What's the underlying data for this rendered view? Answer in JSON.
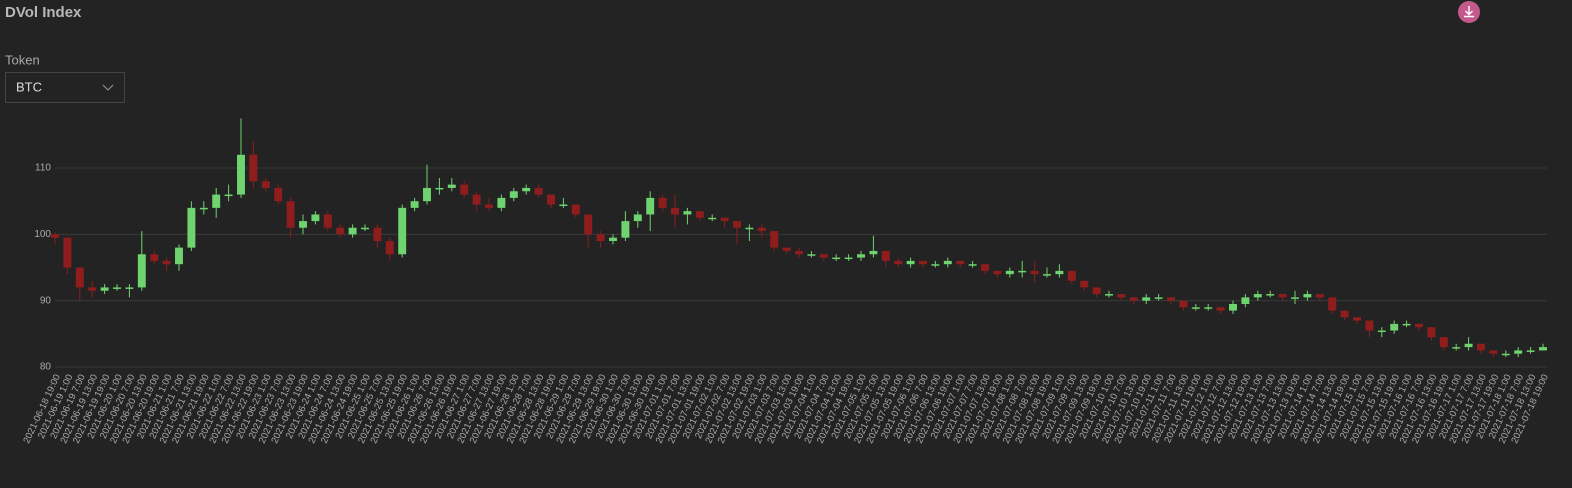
{
  "chart_data": {
    "type": "candlestick",
    "title": "DVol Index",
    "controls": {
      "label": "Token",
      "value": "BTC"
    },
    "categories": [
      "2021-06-18 19:00",
      "2021-06-19 1:00",
      "2021-06-19 7:00",
      "2021-06-19 13:00",
      "2021-06-19 19:00",
      "2021-06-20 1:00",
      "2021-06-20 7:00",
      "2021-06-20 13:00",
      "2021-06-20 19:00",
      "2021-06-21 1:00",
      "2021-06-21 7:00",
      "2021-06-21 13:00",
      "2021-06-21 19:00",
      "2021-06-22 1:00",
      "2021-06-22 7:00",
      "2021-06-22 13:00",
      "2021-06-22 19:00",
      "2021-06-23 1:00",
      "2021-06-23 7:00",
      "2021-06-23 13:00",
      "2021-06-23 19:00",
      "2021-06-24 1:00",
      "2021-06-24 7:00",
      "2021-06-24 13:00",
      "2021-06-24 19:00",
      "2021-06-25 1:00",
      "2021-06-25 7:00",
      "2021-06-25 13:00",
      "2021-06-25 19:00",
      "2021-06-26 1:00",
      "2021-06-26 7:00",
      "2021-06-26 13:00",
      "2021-06-26 19:00",
      "2021-06-27 1:00",
      "2021-06-27 7:00",
      "2021-06-27 13:00",
      "2021-06-27 19:00",
      "2021-06-28 1:00",
      "2021-06-28 7:00",
      "2021-06-28 13:00",
      "2021-06-28 19:00",
      "2021-06-29 1:00",
      "2021-06-29 7:00",
      "2021-06-29 13:00",
      "2021-06-29 19:00",
      "2021-06-30 1:00",
      "2021-06-30 7:00",
      "2021-06-30 13:00",
      "2021-06-30 19:00",
      "2021-07-01 1:00",
      "2021-07-01 7:00",
      "2021-07-01 13:00",
      "2021-07-01 19:00",
      "2021-07-02 1:00",
      "2021-07-02 7:00",
      "2021-07-02 13:00",
      "2021-07-02 19:00",
      "2021-07-03 1:00",
      "2021-07-03 7:00",
      "2021-07-03 13:00",
      "2021-07-03 19:00",
      "2021-07-04 1:00",
      "2021-07-04 7:00",
      "2021-07-04 13:00",
      "2021-07-04 19:00",
      "2021-07-05 1:00",
      "2021-07-05 7:00",
      "2021-07-05 13:00",
      "2021-07-05 19:00",
      "2021-07-06 1:00",
      "2021-07-06 7:00",
      "2021-07-06 13:00",
      "2021-07-06 19:00",
      "2021-07-07 1:00",
      "2021-07-07 7:00",
      "2021-07-07 13:00",
      "2021-07-07 19:00",
      "2021-07-08 1:00",
      "2021-07-08 7:00",
      "2021-07-08 13:00",
      "2021-07-08 19:00",
      "2021-07-09 1:00",
      "2021-07-09 7:00",
      "2021-07-09 13:00",
      "2021-07-09 19:00",
      "2021-07-10 1:00",
      "2021-07-10 7:00",
      "2021-07-10 13:00",
      "2021-07-10 19:00",
      "2021-07-11 1:00",
      "2021-07-11 7:00",
      "2021-07-11 13:00",
      "2021-07-11 19:00",
      "2021-07-12 1:00",
      "2021-07-12 7:00",
      "2021-07-12 13:00",
      "2021-07-12 19:00",
      "2021-07-13 1:00",
      "2021-07-13 7:00",
      "2021-07-13 13:00",
      "2021-07-13 19:00",
      "2021-07-14 1:00",
      "2021-07-14 7:00",
      "2021-07-14 13:00",
      "2021-07-14 19:00",
      "2021-07-15 1:00",
      "2021-07-15 7:00",
      "2021-07-15 13:00",
      "2021-07-15 19:00",
      "2021-07-16 1:00",
      "2021-07-16 7:00",
      "2021-07-16 13:00",
      "2021-07-16 19:00",
      "2021-07-17 1:00",
      "2021-07-17 7:00",
      "2021-07-17 13:00",
      "2021-07-17 19:00",
      "2021-07-18 1:00",
      "2021-07-18 7:00",
      "2021-07-18 13:00",
      "2021-07-18 19:00"
    ],
    "open": [
      100,
      99.5,
      95,
      92,
      91.5,
      92,
      92,
      92,
      97,
      96,
      95.5,
      98,
      104,
      104,
      106,
      106,
      112,
      108,
      107,
      105,
      101,
      102,
      103,
      101,
      100,
      101,
      101,
      99,
      97,
      104,
      105,
      107,
      107,
      107.5,
      106,
      104.5,
      104,
      105.5,
      106.5,
      107,
      106,
      104.5,
      104.5,
      103,
      100,
      99,
      99.5,
      102,
      103,
      105.5,
      104,
      103,
      103.5,
      102.5,
      102.5,
      102,
      101,
      101,
      100.5,
      98,
      97.5,
      97,
      97,
      96.5,
      96.5,
      96.5,
      97,
      97.5,
      96,
      95.5,
      96,
      95.5,
      95.5,
      96,
      95.5,
      95.5,
      94.5,
      94,
      94.5,
      94.5,
      94,
      94,
      94.5,
      93,
      92,
      91,
      91,
      90.5,
      90,
      90.5,
      90.5,
      90,
      89,
      89,
      89,
      88.5,
      89.5,
      90.5,
      91,
      91,
      90.5,
      90.5,
      91,
      90.5,
      88.5,
      87.5,
      87,
      85.5,
      85.5,
      86.5,
      86.5,
      86,
      84.5,
      83,
      83,
      83.5,
      82.5,
      82,
      82,
      82.5,
      82.5
    ],
    "high": [
      100.3,
      99.5,
      95,
      93,
      92.5,
      92.5,
      92.5,
      100.5,
      97.5,
      96.5,
      98.5,
      105,
      105,
      107,
      107.5,
      117.5,
      114,
      108.5,
      107.5,
      105.5,
      103,
      103.5,
      103.5,
      101.5,
      101.5,
      101.5,
      101.5,
      99.5,
      104.5,
      105.5,
      110.5,
      108.5,
      108.5,
      108,
      106.5,
      105.5,
      106,
      107,
      107.5,
      107.5,
      106,
      105.5,
      104.5,
      103,
      100.5,
      100,
      103.5,
      103.5,
      106.5,
      106,
      106,
      104,
      103.5,
      103,
      102.5,
      102,
      101.5,
      101.5,
      100.5,
      98,
      98,
      97.5,
      97,
      97,
      97,
      97.5,
      99.8,
      97.5,
      96.5,
      96.5,
      96,
      96,
      96.5,
      96,
      96,
      95.5,
      94.5,
      95,
      96,
      96,
      95,
      95.5,
      94.5,
      93,
      92,
      91.5,
      91,
      90.5,
      91,
      91,
      90.5,
      90,
      89.5,
      89.5,
      89,
      90,
      91,
      91.5,
      91.5,
      91,
      91.5,
      91.5,
      91,
      90.5,
      88.5,
      87.5,
      87,
      86,
      87,
      87,
      86.5,
      86,
      84.5,
      83.5,
      84.5,
      83.5,
      82.5,
      82.5,
      83,
      83,
      83.5
    ],
    "low": [
      98.5,
      94,
      90,
      90.5,
      91,
      91.5,
      90.5,
      91.5,
      95.5,
      94.5,
      94.5,
      97.5,
      103,
      102.5,
      105,
      105.5,
      107,
      106.5,
      104.5,
      99.5,
      100,
      101.5,
      100.5,
      99.5,
      99.5,
      100.5,
      98,
      96,
      96.5,
      103.5,
      104.5,
      106,
      106.5,
      105.5,
      103.5,
      103.5,
      103.5,
      105,
      106,
      105.5,
      104,
      104,
      102.5,
      98,
      98,
      98.5,
      99,
      101,
      100.5,
      103.5,
      101,
      101.5,
      102,
      102,
      101,
      98.5,
      99,
      99.5,
      97.5,
      97,
      96.5,
      96.5,
      96,
      96,
      96,
      96,
      96.5,
      95,
      95,
      95,
      95,
      95,
      95,
      95,
      95,
      94,
      93.5,
      93.5,
      93.5,
      92.8,
      93.5,
      93.5,
      92.5,
      91.5,
      90.5,
      90.5,
      90,
      89.5,
      89.5,
      90,
      89.5,
      88.5,
      88.5,
      88.5,
      88,
      88,
      89,
      90,
      90.5,
      90,
      89.5,
      90,
      90,
      88,
      87,
      86.5,
      84.5,
      84.5,
      85,
      86,
      85.5,
      84,
      82.5,
      82.5,
      82.5,
      82,
      81.5,
      81.5,
      81.5,
      82,
      82.5
    ],
    "close": [
      99.5,
      95,
      92,
      91.5,
      92,
      92,
      92,
      97,
      96,
      95.5,
      98,
      104,
      104,
      106,
      106,
      112,
      108,
      107,
      105,
      101,
      102,
      103,
      101,
      100,
      101,
      101,
      99,
      97,
      104,
      105,
      107,
      107,
      107.5,
      106,
      104.5,
      104,
      105.5,
      106.5,
      107,
      106,
      104.5,
      104.5,
      103,
      100,
      99,
      99.5,
      102,
      103,
      105.5,
      104,
      103,
      103.5,
      102.5,
      102.5,
      102,
      101,
      101,
      100.5,
      98,
      97.5,
      97,
      97,
      96.5,
      96.5,
      96.5,
      97,
      97.5,
      96,
      95.5,
      96,
      95.5,
      95.5,
      96,
      95.5,
      95.5,
      94.5,
      94,
      94.5,
      94.5,
      94,
      94,
      94.5,
      93,
      92,
      91,
      91,
      90.5,
      90,
      90.5,
      90.5,
      90,
      89,
      89,
      89,
      88.5,
      89.5,
      90.5,
      91,
      91,
      90.5,
      90.5,
      91,
      90.5,
      88.5,
      87.5,
      87,
      85.5,
      85.5,
      86.5,
      86.5,
      86,
      84.5,
      83,
      83,
      83.5,
      82.5,
      82,
      82,
      82.5,
      82.5,
      83
    ],
    "up_color": "#6fd36f",
    "down_color": "#8f1d1d",
    "ylim": [
      80,
      118
    ],
    "yticks": [
      80,
      90,
      100,
      110
    ],
    "grid": true
  }
}
